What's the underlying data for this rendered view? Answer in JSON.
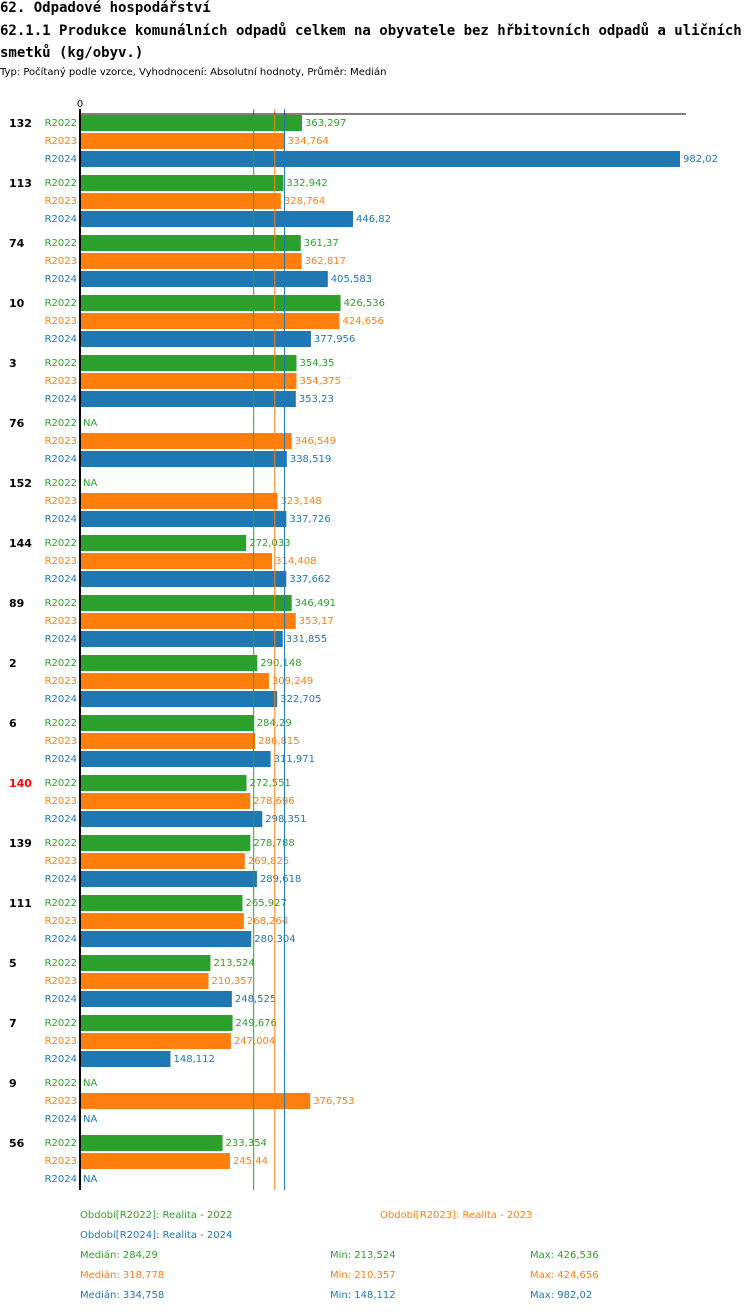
{
  "header": {
    "section": "62. Odpadové hospodářství",
    "title": "62.1.1 Produkce komunálních odpadů celkem na obyvatele bez hřbitovních odpadů a uličních smetků (kg/obyv.)",
    "subtitle": "Typ: Počítaný podle vzorce, Vyhodnocení: Absolutní hodnoty, Průměr: Medián"
  },
  "chart_data": {
    "type": "bar",
    "orientation": "horizontal",
    "axis_zero_label": "0",
    "xlim": [
      0,
      982.02
    ],
    "highlight_color": "#ff0000",
    "series": [
      {
        "key": "R2022",
        "label": "R2022",
        "color": "#2ca02c"
      },
      {
        "key": "R2023",
        "label": "R2023",
        "color": "#ff7f0e"
      },
      {
        "key": "R2024",
        "label": "R2024",
        "color": "#1f77b4"
      }
    ],
    "groups": [
      {
        "label": "132",
        "highlight": false,
        "values": [
          363.297,
          334.764,
          982.02
        ],
        "display": [
          "363,297",
          "334,764",
          "982,02"
        ]
      },
      {
        "label": "113",
        "highlight": false,
        "values": [
          332.942,
          328.764,
          446.82
        ],
        "display": [
          "332,942",
          "328,764",
          "446,82"
        ]
      },
      {
        "label": "74",
        "highlight": false,
        "values": [
          361.37,
          362.817,
          405.583
        ],
        "display": [
          "361,37",
          "362,817",
          "405,583"
        ]
      },
      {
        "label": "10",
        "highlight": false,
        "values": [
          426.536,
          424.656,
          377.956
        ],
        "display": [
          "426,536",
          "424,656",
          "377,956"
        ]
      },
      {
        "label": "3",
        "highlight": false,
        "values": [
          354.35,
          354.375,
          353.23
        ],
        "display": [
          "354,35",
          "354,375",
          "353,23"
        ]
      },
      {
        "label": "76",
        "highlight": false,
        "values": [
          null,
          346.549,
          338.519
        ],
        "display": [
          "NA",
          "346,549",
          "338,519"
        ]
      },
      {
        "label": "152",
        "highlight": false,
        "values": [
          null,
          323.148,
          337.726
        ],
        "display": [
          "NA",
          "323,148",
          "337,726"
        ]
      },
      {
        "label": "144",
        "highlight": false,
        "values": [
          272.033,
          314.408,
          337.662
        ],
        "display": [
          "272,033",
          "314,408",
          "337,662"
        ]
      },
      {
        "label": "89",
        "highlight": false,
        "values": [
          346.491,
          353.17,
          331.855
        ],
        "display": [
          "346,491",
          "353,17",
          "331,855"
        ]
      },
      {
        "label": "2",
        "highlight": false,
        "values": [
          290.148,
          309.249,
          322.705
        ],
        "display": [
          "290,148",
          "309,249",
          "322,705"
        ]
      },
      {
        "label": "6",
        "highlight": false,
        "values": [
          284.29,
          286.815,
          311.971
        ],
        "display": [
          "284,29",
          "286,815",
          "311,971"
        ]
      },
      {
        "label": "140",
        "highlight": true,
        "values": [
          272.551,
          278.696,
          298.351
        ],
        "display": [
          "272,551",
          "278,696",
          "298,351"
        ]
      },
      {
        "label": "139",
        "highlight": false,
        "values": [
          278.788,
          269.825,
          289.618
        ],
        "display": [
          "278,788",
          "269,825",
          "289,618"
        ]
      },
      {
        "label": "111",
        "highlight": false,
        "values": [
          265.927,
          268.264,
          280.304
        ],
        "display": [
          "265,927",
          "268,264",
          "280,304"
        ]
      },
      {
        "label": "5",
        "highlight": false,
        "values": [
          213.524,
          210.357,
          248.525
        ],
        "display": [
          "213,524",
          "210,357",
          "248,525"
        ]
      },
      {
        "label": "7",
        "highlight": false,
        "values": [
          249.676,
          247.004,
          148.112
        ],
        "display": [
          "249,676",
          "247,004",
          "148,112"
        ]
      },
      {
        "label": "9",
        "highlight": false,
        "values": [
          null,
          376.753,
          null
        ],
        "display": [
          "NA",
          "376,753",
          "NA"
        ]
      },
      {
        "label": "56",
        "highlight": false,
        "values": [
          233.354,
          245.44,
          null
        ],
        "display": [
          "233,354",
          "245,44",
          "NA"
        ]
      }
    ],
    "medians": [
      284.29,
      318.778,
      334.758
    ]
  },
  "legend": {
    "periods": [
      {
        "text": "Období[R2022]: Realita - 2022",
        "color": "#2ca02c"
      },
      {
        "text": "Období[R2023]: Realita - 2023",
        "color": "#ff7f0e"
      },
      {
        "text": "Období[R2024]: Realita - 2024",
        "color": "#1f77b4"
      }
    ],
    "stats": [
      {
        "median": "Medián: 284,29",
        "min": "Min: 213,524",
        "max": "Max: 426,536",
        "color": "#2ca02c"
      },
      {
        "median": "Medián: 318,778",
        "min": "Min: 210,357",
        "max": "Max: 424,656",
        "color": "#ff7f0e"
      },
      {
        "median": "Medián: 334,758",
        "min": "Min: 148,112",
        "max": "Max: 982,02",
        "color": "#1f77b4"
      }
    ]
  }
}
